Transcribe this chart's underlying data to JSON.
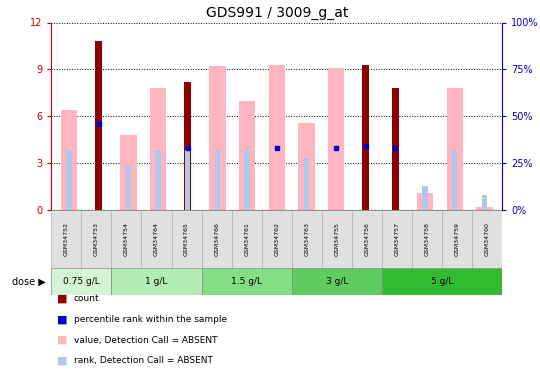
{
  "title": "GDS991 / 3009_g_at",
  "samples": [
    "GSM34752",
    "GSM34753",
    "GSM34754",
    "GSM34764",
    "GSM34765",
    "GSM34766",
    "GSM34761",
    "GSM34762",
    "GSM34763",
    "GSM34755",
    "GSM34756",
    "GSM34757",
    "GSM34758",
    "GSM34759",
    "GSM34760"
  ],
  "count_values": [
    0.0,
    10.8,
    0.0,
    0.0,
    8.2,
    0.0,
    0.0,
    0.0,
    0.0,
    0.0,
    9.3,
    7.8,
    0.0,
    0.0,
    0.0
  ],
  "pink_values": [
    6.4,
    0.0,
    4.8,
    7.8,
    0.0,
    9.2,
    7.0,
    9.3,
    5.6,
    9.1,
    0.0,
    0.0,
    1.1,
    7.8,
    0.2
  ],
  "blue_rank_values": [
    32,
    0,
    24,
    32,
    32,
    32,
    32,
    0,
    28,
    0,
    0,
    0,
    13,
    32,
    8
  ],
  "pct_rank_values": [
    0,
    46,
    0,
    0,
    33,
    0,
    0,
    33,
    0,
    33,
    34,
    33,
    0,
    0,
    0
  ],
  "dose_groups": [
    {
      "label": "0.75 g/L",
      "start": 0,
      "end": 2
    },
    {
      "label": "1 g/L",
      "start": 2,
      "end": 5
    },
    {
      "label": "1.5 g/L",
      "start": 5,
      "end": 8
    },
    {
      "label": "3 g/L",
      "start": 8,
      "end": 11
    },
    {
      "label": "5 g/L",
      "start": 11,
      "end": 15
    }
  ],
  "dose_colors": [
    "#d4f5d4",
    "#b4edb4",
    "#84de84",
    "#60cc60",
    "#30bb30"
  ],
  "ylim_left": [
    0,
    12
  ],
  "ylim_right": [
    0,
    100
  ],
  "yticks_left": [
    0,
    3,
    6,
    9,
    12
  ],
  "yticks_right": [
    0,
    25,
    50,
    75,
    100
  ],
  "count_color": "#8B0000",
  "pink_color": "#FFB6C1",
  "blue_rank_color": "#b0c8e8",
  "pct_rank_color": "#0000cc",
  "bg_color": "#ffffff",
  "left_axis_color": "#cc0000",
  "right_axis_color": "#0000cc",
  "title_fontsize": 10,
  "pink_bar_width": 0.55,
  "count_bar_width": 0.25,
  "rank_bar_width": 0.18
}
